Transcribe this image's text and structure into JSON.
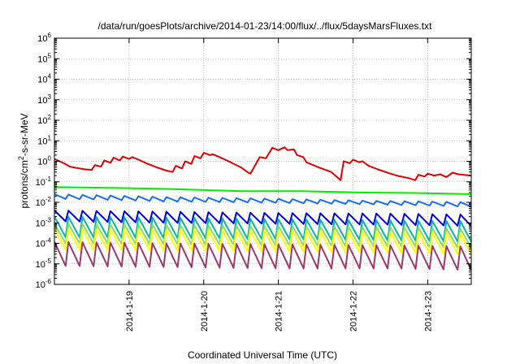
{
  "chart_data": {
    "type": "line",
    "title": "/data/run/goesPlots/archive/2014-01-23/14:00/flux/../flux/5daysMarsFluxes.txt",
    "xlabel": "Coordinated Universal Time (UTC)",
    "ylabel": {
      "main": "protons/cm",
      "sup": "2",
      "rest": "-s-sr-MeV"
    },
    "yscale": "log",
    "ylim": [
      1e-06,
      1000000.0
    ],
    "ytick_labels": [
      {
        "base": "10",
        "exp": "-6"
      },
      {
        "base": "10",
        "exp": "-5"
      },
      {
        "base": "10",
        "exp": "-4"
      },
      {
        "base": "10",
        "exp": "-3"
      },
      {
        "base": "10",
        "exp": "-2"
      },
      {
        "base": "10",
        "exp": "-1"
      },
      {
        "base": "10",
        "exp": "0"
      },
      {
        "base": "10",
        "exp": "1"
      },
      {
        "base": "10",
        "exp": "2"
      },
      {
        "base": "10",
        "exp": "3"
      },
      {
        "base": "10",
        "exp": "4"
      },
      {
        "base": "10",
        "exp": "5"
      },
      {
        "base": "10",
        "exp": "6"
      }
    ],
    "xlim": [
      "2014-01-18 00:00",
      "2014-01-23 14:00"
    ],
    "xtick_labels": [
      "2014-1-19",
      "2014-1-20",
      "2014-1-21",
      "2014-1-22",
      "2014-1-23"
    ],
    "xtick_dates": [
      "2014-01-19",
      "2014-01-20",
      "2014-01-21",
      "2014-01-22",
      "2014-01-23"
    ],
    "grid": true,
    "series": [
      {
        "color": "#e00000",
        "x_hours": [
          0,
          3,
          5,
          8,
          10,
          12,
          13,
          15,
          16,
          18,
          19,
          21,
          22,
          24,
          25,
          27,
          30,
          33,
          36,
          38,
          39,
          41,
          42,
          44,
          45,
          47,
          48,
          50,
          51,
          53,
          56,
          60,
          62,
          63,
          66,
          68,
          70,
          72,
          74,
          75,
          77,
          78,
          80,
          81,
          85,
          89,
          92,
          93,
          95,
          96,
          98,
          99,
          101,
          104,
          108,
          110,
          114,
          116,
          117,
          119,
          120,
          122,
          124,
          126,
          128,
          130,
          134
        ],
        "values": [
          1.3,
          0.8,
          0.55,
          0.45,
          0.4,
          0.38,
          0.65,
          0.55,
          1.1,
          0.85,
          1.5,
          1.1,
          1.7,
          1.3,
          1.6,
          1.2,
          0.75,
          0.5,
          0.35,
          0.3,
          0.6,
          0.45,
          1.0,
          0.75,
          1.8,
          1.4,
          2.6,
          2.0,
          2.2,
          1.6,
          1.0,
          0.5,
          0.3,
          0.25,
          1.6,
          1.4,
          4.5,
          3.5,
          4.8,
          3.5,
          3.8,
          2.0,
          1.6,
          0.9,
          0.5,
          0.3,
          0.12,
          1.0,
          0.8,
          1.2,
          0.9,
          1.0,
          0.6,
          0.4,
          0.25,
          0.2,
          0.15,
          0.12,
          0.22,
          0.18,
          0.25,
          0.2,
          0.23,
          0.17,
          0.28,
          0.23,
          0.2
        ]
      },
      {
        "color": "#00ee00",
        "x_hours": [
          0,
          20,
          36,
          60,
          80,
          100,
          120,
          134
        ],
        "values": [
          0.055,
          0.05,
          0.045,
          0.035,
          0.035,
          0.03,
          0.028,
          0.025
        ]
      },
      {
        "color": "#1a6ff0",
        "x_hours": [
          0,
          20,
          36,
          60,
          80,
          100,
          120,
          134
        ],
        "values": [
          0.025,
          0.021,
          0.018,
          0.016,
          0.014,
          0.012,
          0.011,
          0.01
        ],
        "low_values": [
          0.015,
          0.013,
          0.011,
          0.01,
          0.009,
          0.008,
          0.007,
          0.006
        ],
        "sawtooth_period_hours": 4.5
      },
      {
        "color": "#0000dd",
        "x_hours": [
          0,
          36,
          72,
          110,
          134
        ],
        "values": [
          0.004,
          0.0035,
          0.003,
          0.0028,
          0.0025
        ],
        "low_values": [
          0.0012,
          0.001,
          0.0009,
          0.0008,
          0.0007
        ],
        "sawtooth_period_hours": 4.5
      },
      {
        "color": "#00b89e",
        "x_hours": [
          0,
          36,
          72,
          110,
          134
        ],
        "values": [
          0.002,
          0.0018,
          0.0015,
          0.0013,
          0.0012
        ],
        "low_values": [
          0.0002,
          0.00018,
          0.00016,
          0.00014,
          0.00012
        ],
        "sawtooth_period_hours": 4.5
      },
      {
        "color": "#88dd66",
        "x_hours": [
          0,
          36,
          72,
          110,
          134
        ],
        "values": [
          0.0009,
          0.0008,
          0.0007,
          0.0006,
          0.0005
        ],
        "low_values": [
          0.0001,
          9e-05,
          8e-05,
          7e-05,
          6e-05
        ],
        "sawtooth_period_hours": 4.5
      },
      {
        "color": "#ffff00",
        "x_hours": [
          0,
          36,
          72,
          110,
          134
        ],
        "values": [
          0.0005,
          0.00045,
          0.0004,
          0.00035,
          0.0003
        ],
        "low_values": [
          5e-05,
          4.5e-05,
          4e-05,
          3.5e-05,
          3e-05
        ],
        "sawtooth_period_hours": 4.5
      },
      {
        "color": "#9b3a6a",
        "x_hours": [
          0,
          36,
          72,
          110,
          134
        ],
        "values": [
          0.00012,
          0.0001,
          9e-05,
          8e-05,
          7e-05
        ],
        "low_values": [
          8e-06,
          7e-06,
          6e-06,
          6e-06,
          5e-06
        ],
        "sawtooth_period_hours": 4.5
      }
    ]
  }
}
